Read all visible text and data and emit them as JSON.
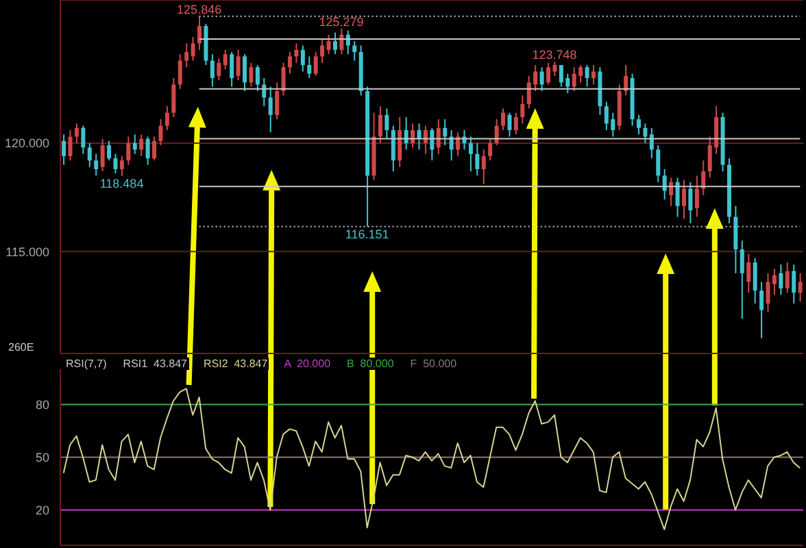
{
  "chart_data": [
    {
      "type": "candlestick",
      "categories": [
        null,
        null,
        null,
        null,
        null,
        null,
        null,
        null,
        null,
        null,
        null,
        null,
        null,
        null,
        null,
        null,
        null,
        null,
        null,
        null,
        null,
        null,
        null,
        null,
        null,
        null,
        null,
        null,
        null,
        null,
        null,
        null,
        null,
        null,
        null,
        null,
        null,
        null,
        null,
        null,
        null,
        null,
        null,
        null,
        null,
        null,
        null,
        null,
        null,
        null,
        null,
        null,
        null,
        null,
        null,
        null,
        null,
        null,
        null,
        null,
        null,
        null,
        null,
        null,
        null,
        null,
        null,
        null,
        null,
        null,
        null,
        null,
        null,
        null,
        null,
        null,
        null,
        null,
        null,
        null,
        null,
        null,
        null,
        null,
        null,
        null,
        null,
        null,
        null,
        null,
        null,
        null,
        null,
        null,
        null,
        null,
        null,
        null,
        null,
        null,
        null,
        null,
        null,
        null,
        null,
        null,
        null,
        null,
        null,
        null,
        null,
        null,
        null,
        null,
        null
      ],
      "ohlc": [
        [
          120.1,
          120.4,
          119.0,
          119.4
        ],
        [
          119.4,
          120.6,
          119.2,
          120.3
        ],
        [
          120.3,
          120.9,
          120.0,
          120.7
        ],
        [
          120.7,
          120.8,
          119.5,
          119.8
        ],
        [
          119.8,
          120.0,
          118.9,
          119.2
        ],
        [
          119.2,
          119.5,
          118.5,
          118.8
        ],
        [
          118.9,
          120.2,
          118.7,
          119.9
        ],
        [
          119.9,
          120.1,
          119.2,
          119.3
        ],
        [
          119.3,
          119.5,
          118.6,
          118.8
        ],
        [
          118.8,
          119.4,
          118.484,
          119.2
        ],
        [
          119.2,
          120.3,
          119.0,
          120.0
        ],
        [
          120.0,
          120.4,
          119.5,
          119.7
        ],
        [
          119.7,
          120.4,
          119.4,
          120.2
        ],
        [
          120.2,
          120.3,
          119.0,
          119.3
        ],
        [
          119.3,
          120.3,
          119.2,
          120.1
        ],
        [
          120.1,
          121.1,
          119.9,
          120.8
        ],
        [
          120.8,
          121.7,
          120.6,
          121.4
        ],
        [
          121.4,
          123.0,
          121.2,
          122.7
        ],
        [
          122.7,
          124.1,
          122.5,
          123.8
        ],
        [
          123.8,
          124.6,
          123.5,
          124.2
        ],
        [
          124.0,
          124.9,
          123.8,
          124.6
        ],
        [
          124.6,
          125.846,
          124.3,
          125.4
        ],
        [
          125.4,
          125.5,
          123.6,
          123.8
        ],
        [
          123.8,
          124.1,
          122.6,
          123.0
        ],
        [
          123.1,
          123.9,
          122.9,
          123.7
        ],
        [
          123.6,
          124.3,
          123.4,
          124.1
        ],
        [
          124.1,
          124.2,
          122.6,
          123.0
        ],
        [
          123.1,
          124.3,
          122.9,
          124.0
        ],
        [
          124.0,
          124.1,
          122.4,
          122.8
        ],
        [
          122.8,
          123.7,
          122.6,
          123.5
        ],
        [
          123.5,
          123.6,
          122.4,
          122.7
        ],
        [
          122.7,
          123.0,
          121.7,
          122.1
        ],
        [
          122.1,
          122.6,
          120.5,
          121.3
        ],
        [
          121.3,
          122.8,
          121.1,
          122.4
        ],
        [
          122.4,
          123.7,
          122.2,
          123.5
        ],
        [
          123.5,
          124.2,
          123.2,
          124.0
        ],
        [
          124.0,
          124.6,
          123.7,
          124.3
        ],
        [
          124.3,
          124.5,
          123.3,
          123.6
        ],
        [
          123.6,
          124.0,
          123.0,
          123.2
        ],
        [
          123.2,
          124.2,
          123.1,
          124.0
        ],
        [
          124.0,
          124.8,
          123.7,
          124.5
        ],
        [
          124.3,
          125.0,
          124.1,
          124.7
        ],
        [
          124.7,
          125.1,
          124.1,
          124.3
        ],
        [
          124.3,
          125.279,
          124.1,
          125.0
        ],
        [
          125.0,
          125.2,
          124.1,
          124.5
        ],
        [
          124.5,
          124.7,
          123.8,
          124.2
        ],
        [
          124.2,
          124.5,
          122.2,
          122.4
        ],
        [
          122.4,
          122.6,
          116.151,
          118.5
        ],
        [
          118.5,
          121.4,
          118.3,
          120.3
        ],
        [
          120.3,
          121.7,
          120.0,
          121.3
        ],
        [
          121.3,
          121.6,
          120.2,
          120.6
        ],
        [
          120.6,
          120.8,
          118.7,
          119.2
        ],
        [
          119.2,
          121.2,
          118.9,
          120.6
        ],
        [
          120.6,
          121.2,
          119.7,
          120.0
        ],
        [
          120.0,
          120.9,
          119.8,
          120.6
        ],
        [
          120.6,
          120.9,
          119.7,
          120.2
        ],
        [
          120.0,
          120.8,
          119.5,
          120.6
        ],
        [
          120.6,
          120.7,
          119.2,
          119.7
        ],
        [
          119.8,
          121.1,
          119.5,
          120.7
        ],
        [
          120.7,
          121.1,
          119.9,
          120.3
        ],
        [
          120.3,
          120.6,
          119.2,
          119.7
        ],
        [
          119.7,
          120.5,
          119.4,
          120.3
        ],
        [
          120.3,
          120.6,
          119.7,
          120.0
        ],
        [
          120.0,
          120.3,
          118.7,
          119.5
        ],
        [
          119.5,
          120.0,
          118.5,
          118.8
        ],
        [
          118.8,
          119.7,
          118.1,
          119.4
        ],
        [
          119.4,
          120.2,
          119.2,
          120.0
        ],
        [
          120.0,
          121.1,
          119.9,
          120.8
        ],
        [
          120.8,
          121.6,
          120.6,
          121.4
        ],
        [
          121.3,
          121.4,
          120.3,
          120.6
        ],
        [
          120.6,
          121.4,
          120.4,
          121.2
        ],
        [
          121.2,
          122.2,
          120.9,
          121.8
        ],
        [
          121.8,
          123.1,
          121.6,
          122.8
        ],
        [
          122.7,
          123.6,
          122.4,
          123.3
        ],
        [
          123.3,
          123.5,
          122.4,
          122.7
        ],
        [
          122.8,
          123.7,
          122.7,
          123.5
        ],
        [
          123.3,
          123.748,
          123.1,
          123.6
        ],
        [
          123.6,
          123.6,
          122.6,
          122.8
        ],
        [
          123.0,
          123.2,
          122.3,
          122.6
        ],
        [
          122.6,
          123.5,
          122.4,
          123.2
        ],
        [
          123.1,
          123.6,
          122.8,
          123.5
        ],
        [
          123.5,
          123.6,
          122.6,
          123.0
        ],
        [
          123.0,
          123.6,
          122.7,
          123.3
        ],
        [
          123.3,
          123.5,
          121.3,
          121.7
        ],
        [
          121.7,
          121.9,
          120.6,
          120.9
        ],
        [
          121.1,
          121.4,
          120.3,
          120.6
        ],
        [
          120.8,
          122.7,
          120.6,
          122.4
        ],
        [
          122.4,
          123.6,
          122.2,
          123.1
        ],
        [
          123.0,
          123.2,
          120.8,
          121.1
        ],
        [
          121.1,
          121.3,
          120.4,
          120.7
        ],
        [
          120.7,
          120.9,
          120.0,
          120.3
        ],
        [
          120.4,
          120.7,
          119.3,
          119.7
        ],
        [
          119.7,
          119.9,
          118.2,
          118.5
        ],
        [
          118.5,
          118.8,
          117.4,
          117.8
        ],
        [
          117.6,
          118.4,
          117.1,
          118.2
        ],
        [
          118.2,
          118.4,
          116.6,
          117.1
        ],
        [
          117.1,
          118.3,
          116.5,
          117.9
        ],
        [
          117.9,
          118.2,
          116.3,
          116.9
        ],
        [
          117.0,
          118.5,
          116.6,
          117.9
        ],
        [
          117.9,
          119.2,
          117.6,
          118.7
        ],
        [
          118.7,
          120.3,
          118.4,
          119.9
        ],
        [
          119.8,
          121.7,
          119.5,
          121.2
        ],
        [
          121.2,
          121.4,
          118.7,
          119.0
        ],
        [
          119.0,
          119.3,
          116.3,
          116.6
        ],
        [
          116.6,
          117.1,
          114.0,
          115.1
        ],
        [
          115.1,
          115.5,
          111.9,
          114.0
        ],
        [
          113.6,
          114.9,
          113.1,
          114.5
        ],
        [
          114.5,
          114.7,
          112.6,
          113.2
        ],
        [
          113.2,
          113.6,
          111.0,
          112.3
        ],
        [
          112.6,
          114.0,
          112.2,
          113.6
        ],
        [
          113.5,
          114.2,
          113.0,
          113.9
        ],
        [
          114.0,
          114.4,
          113.0,
          113.3
        ],
        [
          113.3,
          114.5,
          113.1,
          114.1
        ],
        [
          114.1,
          114.4,
          112.6,
          113.1
        ],
        [
          113.1,
          114.0,
          112.7,
          113.6
        ]
      ],
      "colors": [
        "#3fc4cf",
        "#d04848",
        "#d04848",
        "#3fc4cf",
        "#3fc4cf",
        "#3fc4cf",
        "#d04848",
        "#3fc4cf",
        "#3fc4cf",
        "#d04848",
        "#d04848",
        "#3fc4cf",
        "#d04848",
        "#3fc4cf",
        "#d04848",
        "#d04848",
        "#d04848",
        "#d04848",
        "#d04848",
        "#d04848",
        "#d04848",
        "#d04848",
        "#3fc4cf",
        "#3fc4cf",
        "#d04848",
        "#d04848",
        "#3fc4cf",
        "#d04848",
        "#3fc4cf",
        "#d04848",
        "#3fc4cf",
        "#3fc4cf",
        "#3fc4cf",
        "#d04848",
        "#d04848",
        "#d04848",
        "#d04848",
        "#3fc4cf",
        "#3fc4cf",
        "#d04848",
        "#d04848",
        "#d04848",
        "#3fc4cf",
        "#d04848",
        "#3fc4cf",
        "#3fc4cf",
        "#3fc4cf",
        "#3fc4cf",
        "#d04848",
        "#d04848",
        "#3fc4cf",
        "#3fc4cf",
        "#d04848",
        "#3fc4cf",
        "#d04848",
        "#3fc4cf",
        "#d04848",
        "#3fc4cf",
        "#d04848",
        "#3fc4cf",
        "#3fc4cf",
        "#d04848",
        "#3fc4cf",
        "#3fc4cf",
        "#3fc4cf",
        "#d04848",
        "#d04848",
        "#d04848",
        "#d04848",
        "#3fc4cf",
        "#d04848",
        "#d04848",
        "#d04848",
        "#d04848",
        "#3fc4cf",
        "#d04848",
        "#d04848",
        "#3fc4cf",
        "#3fc4cf",
        "#d04848",
        "#d04848",
        "#3fc4cf",
        "#d04848",
        "#3fc4cf",
        "#3fc4cf",
        "#3fc4cf",
        "#d04848",
        "#d04848",
        "#3fc4cf",
        "#3fc4cf",
        "#3fc4cf",
        "#3fc4cf",
        "#3fc4cf",
        "#3fc4cf",
        "#d04848",
        "#3fc4cf",
        "#d04848",
        "#3fc4cf",
        "#d04848",
        "#d04848",
        "#d04848",
        "#d04848",
        "#3fc4cf",
        "#3fc4cf",
        "#3fc4cf",
        "#3fc4cf",
        "#d04848",
        "#3fc4cf",
        "#3fc4cf",
        "#d04848",
        "#d04848",
        "#3fc4cf",
        "#d04848",
        "#3fc4cf",
        "#d04848"
      ],
      "ylim": [
        110.3,
        126.6
      ],
      "yticks": [
        {
          "value": 115,
          "label": "115.000"
        },
        {
          "value": 120,
          "label": "120.000"
        }
      ],
      "grid": "y",
      "ref_lines": [
        {
          "axis": "y",
          "value": 125.846,
          "color": "#c8c8c8",
          "line_style": "dotted"
        },
        {
          "axis": "y",
          "value": 124.8,
          "color": "#c8c8c8",
          "line_style": "solid"
        },
        {
          "axis": "y",
          "value": 122.5,
          "color": "#c8c8c8",
          "line_style": "solid"
        },
        {
          "axis": "y",
          "value": 120.2,
          "color": "#c8c8c8",
          "line_style": "solid"
        },
        {
          "axis": "y",
          "value": 118.0,
          "color": "#c8c8c8",
          "line_style": "solid"
        },
        {
          "axis": "y",
          "value": 116.151,
          "color": "#c8c8c8",
          "line_style": "dotted"
        }
      ],
      "annotations": [
        {
          "text": "125.846",
          "y": 125.846
        },
        {
          "text": "125.279",
          "y": 125.279
        },
        {
          "text": "123.748",
          "y": 123.748
        },
        {
          "text": "118.484",
          "y": 118.484
        },
        {
          "text": "116.151",
          "y": 116.151
        }
      ]
    },
    {
      "type": "line",
      "title": "RSI(7,7)",
      "categories": [
        null,
        null,
        null,
        null,
        null,
        null,
        null,
        null,
        null,
        null,
        null,
        null,
        null,
        null,
        null,
        null,
        null,
        null,
        null,
        null,
        null,
        null,
        null,
        null,
        null,
        null,
        null,
        null,
        null,
        null,
        null,
        null,
        null,
        null,
        null,
        null,
        null,
        null,
        null,
        null,
        null,
        null,
        null,
        null,
        null,
        null,
        null,
        null,
        null,
        null,
        null,
        null,
        null,
        null,
        null,
        null,
        null,
        null,
        null,
        null,
        null,
        null,
        null,
        null,
        null,
        null,
        null,
        null,
        null,
        null,
        null,
        null,
        null,
        null,
        null,
        null,
        null,
        null,
        null,
        null,
        null,
        null,
        null,
        null,
        null,
        null,
        null,
        null,
        null,
        null,
        null,
        null,
        null,
        null,
        null,
        null,
        null,
        null,
        null,
        null,
        null,
        null,
        null,
        null,
        null,
        null,
        null,
        null,
        null,
        null,
        null,
        null,
        null,
        null,
        null
      ],
      "series": [
        {
          "name": "RSI2  43.847",
          "color": "#d6d392",
          "values": [
            41,
            57,
            62,
            50,
            36,
            37,
            57,
            43,
            37,
            59,
            63,
            47,
            59,
            45,
            43,
            61,
            72,
            82,
            87,
            89,
            74,
            84,
            55,
            49,
            47,
            43,
            41,
            61,
            56,
            37,
            47,
            37,
            20,
            50,
            63,
            66,
            65,
            56,
            45,
            59,
            53,
            70,
            61,
            68,
            49,
            49,
            42,
            10,
            27,
            47,
            34,
            40,
            40,
            51,
            50,
            48,
            53,
            48,
            52,
            45,
            44,
            58,
            47,
            51,
            36,
            33,
            50,
            67,
            67,
            63,
            54,
            63,
            75,
            82,
            69,
            70,
            74,
            50,
            47,
            54,
            61,
            58,
            53,
            31,
            30,
            50,
            53,
            38,
            35,
            32,
            36,
            29,
            19,
            9,
            22,
            32,
            25,
            37,
            60,
            56,
            64,
            78,
            49,
            33,
            20,
            30,
            37,
            32,
            27,
            45,
            50,
            51,
            53,
            47,
            43.847
          ]
        }
      ],
      "ylim": [
        0,
        100
      ],
      "yticks": [
        20,
        50,
        80
      ],
      "ref_lines": [
        {
          "axis": "y",
          "value": 20,
          "label": "A  20.000",
          "color": "#c23fc8"
        },
        {
          "axis": "y",
          "value": 80,
          "label": "B  80.000",
          "color": "#44a844"
        },
        {
          "axis": "y",
          "value": 50,
          "label": "F  50.000",
          "color": "#8c7676"
        }
      ],
      "legend": "top left",
      "annotations": [
        "260E",
        "RSI1  43.847"
      ]
    }
  ]
}
